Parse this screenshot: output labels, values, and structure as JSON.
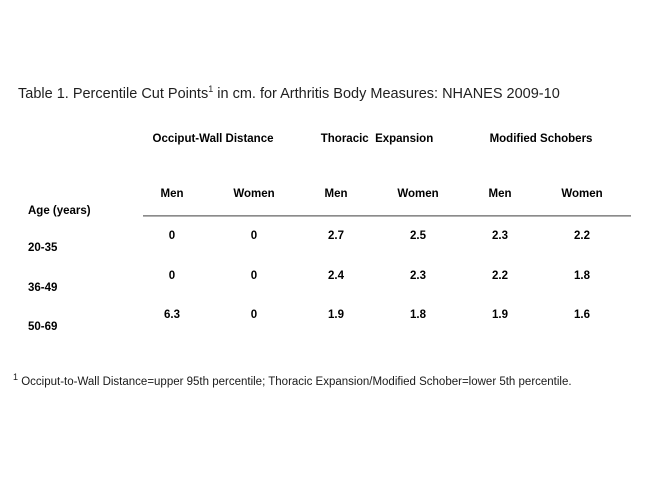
{
  "title": {
    "prefix": "Table 1. Percentile Cut Points",
    "superscript": "1",
    "suffix": " in cm. for Arthritis Body Measures: NHANES 2009-10"
  },
  "table": {
    "group_headers": [
      "Occiput-Wall Distance",
      "Thoracic  Expansion",
      "Modified Schobers"
    ],
    "row_axis_label": "Age (years)",
    "sub_headers": [
      "Men",
      "Women",
      "Men",
      "Women",
      "Men",
      "Women"
    ],
    "rows": [
      {
        "age": "20-35",
        "values": [
          "0",
          "0",
          "2.7",
          "2.5",
          "2.3",
          "2.2"
        ]
      },
      {
        "age": "36-49",
        "values": [
          "0",
          "0",
          "2.4",
          "2.3",
          "2.2",
          "1.8"
        ]
      },
      {
        "age": "50-69",
        "values": [
          "6.3",
          "0",
          "1.9",
          "1.8",
          "1.9",
          "1.6"
        ]
      }
    ]
  },
  "footnote": {
    "superscript": "1",
    "text": " Occiput-to-Wall Distance=upper 95th percentile; Thoracic Expansion/Modified Schober=lower 5th percentile."
  },
  "colors": {
    "background": "#ffffff",
    "text": "#000000",
    "rule": "#787878"
  }
}
